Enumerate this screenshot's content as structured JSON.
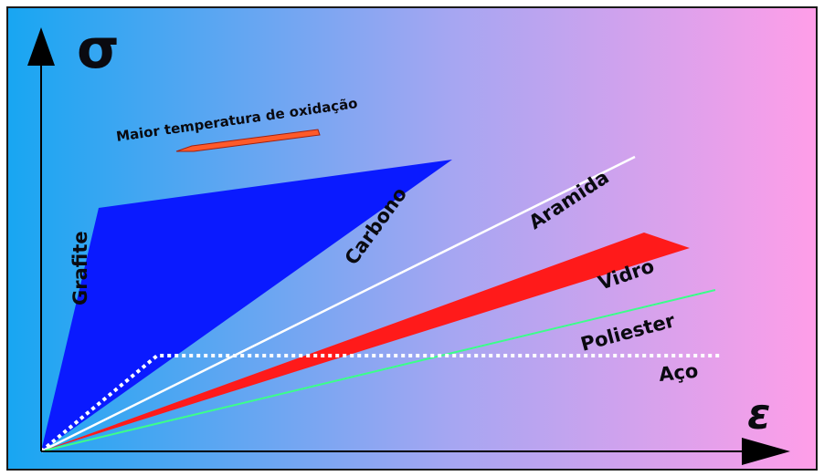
{
  "axes": {
    "y_symbol": "σ",
    "x_symbol": "ε"
  },
  "annotation": {
    "text": "Maior temperatura de oxidação",
    "arrow_color": "#ff5a2a"
  },
  "materials": [
    {
      "label": "Grafite",
      "color": "#0a1aff"
    },
    {
      "label": "Carbono",
      "color": "#0a1aff"
    },
    {
      "label": "Aramida",
      "color": "#ffffff"
    },
    {
      "label": "Vidro",
      "color": "#ff1a1a"
    },
    {
      "label": "Poliester",
      "color": "#3cff8a"
    },
    {
      "label": "Aço",
      "color": "#ffffff"
    }
  ],
  "colors": {
    "background_left": "#18a6f2",
    "background_mid": "#a6a6f2",
    "background_right": "#ff9ee8",
    "axis": "#000000",
    "border": "#1a1a1a"
  }
}
